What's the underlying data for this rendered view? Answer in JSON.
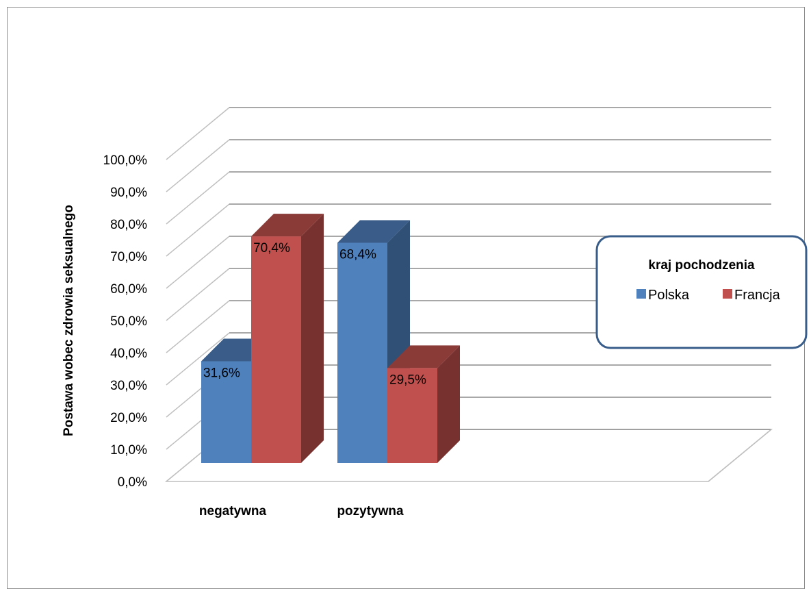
{
  "chart_data": {
    "type": "bar",
    "title": "",
    "xlabel": "",
    "ylabel": "Postawa wobec zdrowia seksualnego",
    "categories": [
      "negatywna",
      "pozytywna"
    ],
    "series": [
      {
        "name": "Polska",
        "values": [
          31.6,
          68.4
        ],
        "labels": [
          "31,6%",
          "68,4%"
        ],
        "color": "#4f81bd"
      },
      {
        "name": "Francja",
        "values": [
          70.4,
          29.5
        ],
        "labels": [
          "70,4%",
          "29,5%"
        ],
        "color": "#c0504d"
      }
    ],
    "ylim": [
      0,
      100
    ],
    "yticks": [
      0,
      10,
      20,
      30,
      40,
      50,
      60,
      70,
      80,
      90,
      100
    ],
    "ytick_labels": [
      "0,0%",
      "10,0%",
      "20,0%",
      "30,0%",
      "40,0%",
      "50,0%",
      "60,0%",
      "70,0%",
      "80,0%",
      "90,0%",
      "100,0%"
    ],
    "grid": true,
    "legend": {
      "title": "kraj pochodzenia",
      "position": "right"
    }
  }
}
